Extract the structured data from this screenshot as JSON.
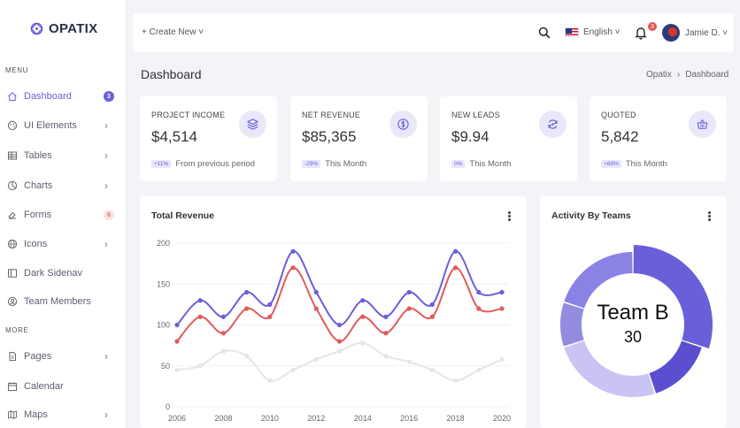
{
  "brand": {
    "name": "OPATIX"
  },
  "sidebar": {
    "menu_label": "MENU",
    "more_label": "MORE",
    "items": [
      {
        "label": "Dashboard",
        "icon": "home-icon",
        "badge": "3",
        "active": true
      },
      {
        "label": "UI Elements",
        "icon": "palette-icon"
      },
      {
        "label": "Tables",
        "icon": "table-icon"
      },
      {
        "label": "Charts",
        "icon": "chart-icon"
      },
      {
        "label": "Forms",
        "icon": "eraser-icon",
        "badge": "6"
      },
      {
        "label": "Icons",
        "icon": "globe-icon"
      },
      {
        "label": "Dark Sidenav",
        "icon": "layout-icon"
      },
      {
        "label": "Team Members",
        "icon": "user-circle-icon"
      }
    ],
    "more_items": [
      {
        "label": "Pages",
        "icon": "file-icon"
      },
      {
        "label": "Calendar",
        "icon": "calendar-icon"
      },
      {
        "label": "Maps",
        "icon": "map-icon"
      }
    ]
  },
  "topbar": {
    "create_new": "+ Create New ˅",
    "language": "English ˅",
    "notifications": "3",
    "user_name": "Jamie D. ˅"
  },
  "page": {
    "title": "Dashboard",
    "breadcrumb": [
      "Opatix",
      "›",
      "Dashboard"
    ]
  },
  "stats": [
    {
      "label": "PROJECT INCOME",
      "value": "$4,514",
      "change": "+11%",
      "note": "From previous period",
      "icon": "layers-icon"
    },
    {
      "label": "NET REVENUE",
      "value": "$85,365",
      "change": "-29%",
      "note": "This Month",
      "icon": "dollar-icon"
    },
    {
      "label": "NEW LEADS",
      "value": "$9.94",
      "change": "0%",
      "note": "This Month",
      "icon": "refresh-icon"
    },
    {
      "label": "QUOTED",
      "value": "5,842",
      "change": "+89%",
      "note": "This Month",
      "icon": "basket-icon"
    }
  ],
  "revenue": {
    "title": "Total Revenue",
    "chart_data": {
      "type": "line",
      "x": [
        2006,
        2007,
        2008,
        2009,
        2010,
        2011,
        2012,
        2013,
        2014,
        2015,
        2016,
        2017,
        2018,
        2019,
        2020
      ],
      "x_ticks": [
        "2006",
        "2008",
        "2010",
        "2012",
        "2014",
        "2016",
        "2018",
        "2020"
      ],
      "y_ticks": [
        "0",
        "50",
        "100",
        "150",
        "200"
      ],
      "ylim": [
        0,
        200
      ],
      "series": [
        {
          "color": "#6a5fd8",
          "values": [
            100,
            130,
            110,
            140,
            125,
            190,
            140,
            100,
            130,
            110,
            140,
            125,
            190,
            140,
            140
          ]
        },
        {
          "color": "#e05b5b",
          "values": [
            80,
            110,
            90,
            120,
            110,
            170,
            120,
            80,
            110,
            90,
            120,
            110,
            170,
            120,
            120
          ]
        },
        {
          "color": "#e6e6e6",
          "values": [
            45,
            50,
            68,
            62,
            32,
            45,
            58,
            68,
            78,
            62,
            55,
            45,
            32,
            45,
            58
          ]
        }
      ]
    }
  },
  "activity": {
    "title": "Activity By Teams",
    "center_label": "Team B",
    "center_value": "30",
    "chart_data": {
      "type": "pie",
      "values": [
        30,
        15,
        25,
        10,
        20
      ],
      "colors": [
        "#6a5fd8",
        "#5b4fcf",
        "#c9c4f3",
        "#938cdf",
        "#8b82e6"
      ]
    }
  }
}
